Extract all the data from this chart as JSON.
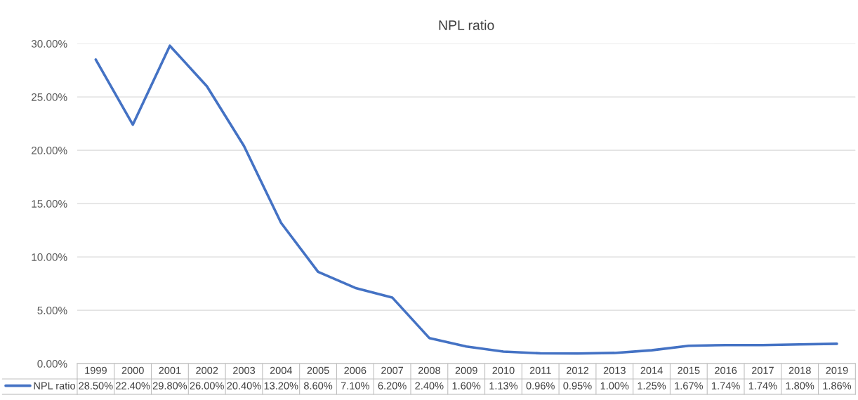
{
  "chart_data": {
    "type": "line",
    "title": "NPL ratio",
    "categories": [
      "1999",
      "2000",
      "2001",
      "2002",
      "2003",
      "2004",
      "2005",
      "2006",
      "2007",
      "2008",
      "2009",
      "2010",
      "2011",
      "2012",
      "2013",
      "2014",
      "2015",
      "2016",
      "2017",
      "2018",
      "2019"
    ],
    "series": [
      {
        "name": "NPL ratio",
        "color": "#4472c4",
        "values": [
          28.5,
          22.4,
          29.8,
          26.0,
          20.4,
          13.2,
          8.6,
          7.1,
          6.2,
          2.4,
          1.6,
          1.13,
          0.96,
          0.95,
          1.0,
          1.25,
          1.67,
          1.74,
          1.74,
          1.8,
          1.86
        ],
        "value_labels": [
          "28.50%",
          "22.40%",
          "29.80%",
          "26.00%",
          "20.40%",
          "13.20%",
          "8.60%",
          "7.10%",
          "6.20%",
          "2.40%",
          "1.60%",
          "1.13%",
          "0.96%",
          "0.95%",
          "1.00%",
          "1.25%",
          "1.67%",
          "1.74%",
          "1.74%",
          "1.80%",
          "1.86%"
        ]
      }
    ],
    "ylim": [
      0,
      30
    ],
    "yticks": [
      {
        "value": 0,
        "label": "0.00%"
      },
      {
        "value": 5,
        "label": "5.00%"
      },
      {
        "value": 10,
        "label": "10.00%"
      },
      {
        "value": 15,
        "label": "15.00%"
      },
      {
        "value": 20,
        "label": "20.00%"
      },
      {
        "value": 25,
        "label": "25.00%"
      },
      {
        "value": 30,
        "label": "30.00%"
      }
    ],
    "grid": "y",
    "legend": "bottom",
    "marker": "none",
    "line_style": "solid"
  }
}
